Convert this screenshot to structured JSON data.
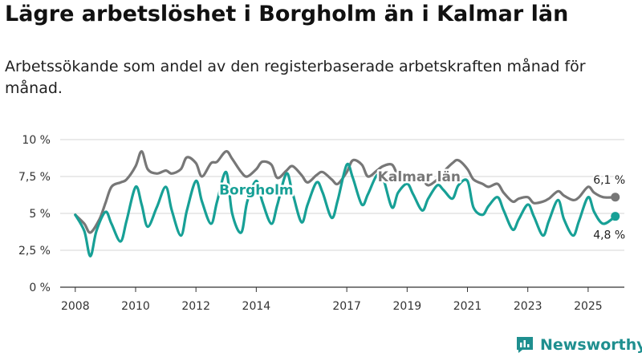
{
  "title": "Lägre arbetslöshet i Borgholm än i Kalmar län",
  "subtitle": "Arbetssökande som andel av den registerbaserade arbetskraften månad för månad.",
  "brand": "Newsworthy",
  "colors": {
    "kalmar": "#777777",
    "borgholm": "#17a096",
    "grid": "#d4d4d4",
    "axis": "#333333",
    "brand": "#1f8f8f"
  },
  "chart_data": {
    "type": "line",
    "title": "Lägre arbetslöshet i Borgholm än i Kalmar län",
    "ylabel": "",
    "xlabel": "",
    "xlim": [
      2007.5,
      2026.2
    ],
    "ylim": [
      0,
      10
    ],
    "y_ticks": [
      0,
      2.5,
      5,
      7.5,
      10
    ],
    "y_tick_labels": [
      "0 %",
      "2,5 %",
      "5 %",
      "7,5 %",
      "10 %"
    ],
    "x_ticks": [
      2008,
      2010,
      2012,
      2014,
      2017,
      2019,
      2021,
      2023,
      2025
    ],
    "x_tick_labels": [
      "2008",
      "2010",
      "2012",
      "2014",
      "2017",
      "2019",
      "2021",
      "2023",
      "2025"
    ],
    "grid": true,
    "series": [
      {
        "name": "Kalmar län",
        "label": "Kalmar län",
        "end_label": "6,1 %",
        "x": [
          2008.0,
          2008.3,
          2008.5,
          2008.8,
          2009.0,
          2009.2,
          2009.5,
          2009.7,
          2010.0,
          2010.2,
          2010.4,
          2010.7,
          2011.0,
          2011.2,
          2011.5,
          2011.7,
          2012.0,
          2012.2,
          2012.5,
          2012.7,
          2013.0,
          2013.2,
          2013.5,
          2013.7,
          2014.0,
          2014.2,
          2014.5,
          2014.7,
          2015.0,
          2015.2,
          2015.5,
          2015.7,
          2016.0,
          2016.2,
          2016.5,
          2016.7,
          2017.0,
          2017.2,
          2017.5,
          2017.7,
          2018.0,
          2018.2,
          2018.5,
          2018.7,
          2019.0,
          2019.2,
          2019.5,
          2019.7,
          2020.0,
          2020.2,
          2020.5,
          2020.7,
          2021.0,
          2021.2,
          2021.5,
          2021.7,
          2022.0,
          2022.2,
          2022.5,
          2022.7,
          2023.0,
          2023.2,
          2023.5,
          2023.7,
          2024.0,
          2024.2,
          2024.5,
          2024.7,
          2025.0,
          2025.2,
          2025.5,
          2025.9
        ],
        "values": [
          4.9,
          4.3,
          3.7,
          4.6,
          5.7,
          6.8,
          7.1,
          7.3,
          8.2,
          9.2,
          8.0,
          7.7,
          7.9,
          7.7,
          8.0,
          8.8,
          8.4,
          7.5,
          8.4,
          8.5,
          9.2,
          8.7,
          7.8,
          7.5,
          8.0,
          8.5,
          8.3,
          7.4,
          7.9,
          8.2,
          7.6,
          7.1,
          7.6,
          7.8,
          7.3,
          7.0,
          7.8,
          8.6,
          8.3,
          7.5,
          7.9,
          8.2,
          8.3,
          7.6,
          7.4,
          7.2,
          7.3,
          6.9,
          7.3,
          7.8,
          8.4,
          8.6,
          8.0,
          7.3,
          7.0,
          6.8,
          7.0,
          6.4,
          5.8,
          6.0,
          6.1,
          5.7,
          5.8,
          6.0,
          6.5,
          6.2,
          5.9,
          6.1,
          6.8,
          6.4,
          6.1,
          6.1
        ]
      },
      {
        "name": "Borgholm",
        "label": "Borgholm",
        "end_label": "4,8 %",
        "x": [
          2008.0,
          2008.3,
          2008.5,
          2008.7,
          2009.0,
          2009.2,
          2009.5,
          2009.7,
          2010.0,
          2010.2,
          2010.4,
          2010.7,
          2011.0,
          2011.2,
          2011.5,
          2011.7,
          2012.0,
          2012.2,
          2012.5,
          2012.7,
          2013.0,
          2013.2,
          2013.5,
          2013.7,
          2014.0,
          2014.2,
          2014.5,
          2014.7,
          2015.0,
          2015.2,
          2015.5,
          2015.7,
          2016.0,
          2016.2,
          2016.5,
          2016.7,
          2017.0,
          2017.2,
          2017.5,
          2017.7,
          2018.0,
          2018.2,
          2018.5,
          2018.7,
          2019.0,
          2019.2,
          2019.5,
          2019.7,
          2020.0,
          2020.2,
          2020.5,
          2020.7,
          2021.0,
          2021.2,
          2021.5,
          2021.7,
          2022.0,
          2022.2,
          2022.5,
          2022.7,
          2023.0,
          2023.2,
          2023.5,
          2023.7,
          2024.0,
          2024.2,
          2024.5,
          2024.7,
          2025.0,
          2025.2,
          2025.5,
          2025.9
        ],
        "values": [
          4.9,
          3.8,
          2.1,
          3.8,
          5.1,
          4.3,
          3.1,
          4.5,
          6.8,
          5.6,
          4.1,
          5.4,
          6.8,
          5.2,
          3.5,
          5.2,
          7.2,
          5.8,
          4.3,
          5.8,
          7.8,
          5.0,
          3.7,
          5.8,
          7.2,
          5.8,
          4.3,
          5.6,
          7.7,
          6.4,
          4.4,
          5.6,
          7.1,
          6.4,
          4.7,
          5.9,
          8.3,
          7.4,
          5.6,
          6.3,
          7.6,
          7.4,
          5.4,
          6.4,
          7.0,
          6.3,
          5.2,
          6.0,
          6.9,
          6.6,
          6.0,
          6.9,
          7.2,
          5.4,
          4.9,
          5.5,
          6.1,
          5.2,
          3.9,
          4.6,
          5.6,
          4.8,
          3.5,
          4.5,
          5.9,
          4.6,
          3.5,
          4.5,
          6.1,
          5.1,
          4.3,
          4.8
        ]
      }
    ]
  }
}
